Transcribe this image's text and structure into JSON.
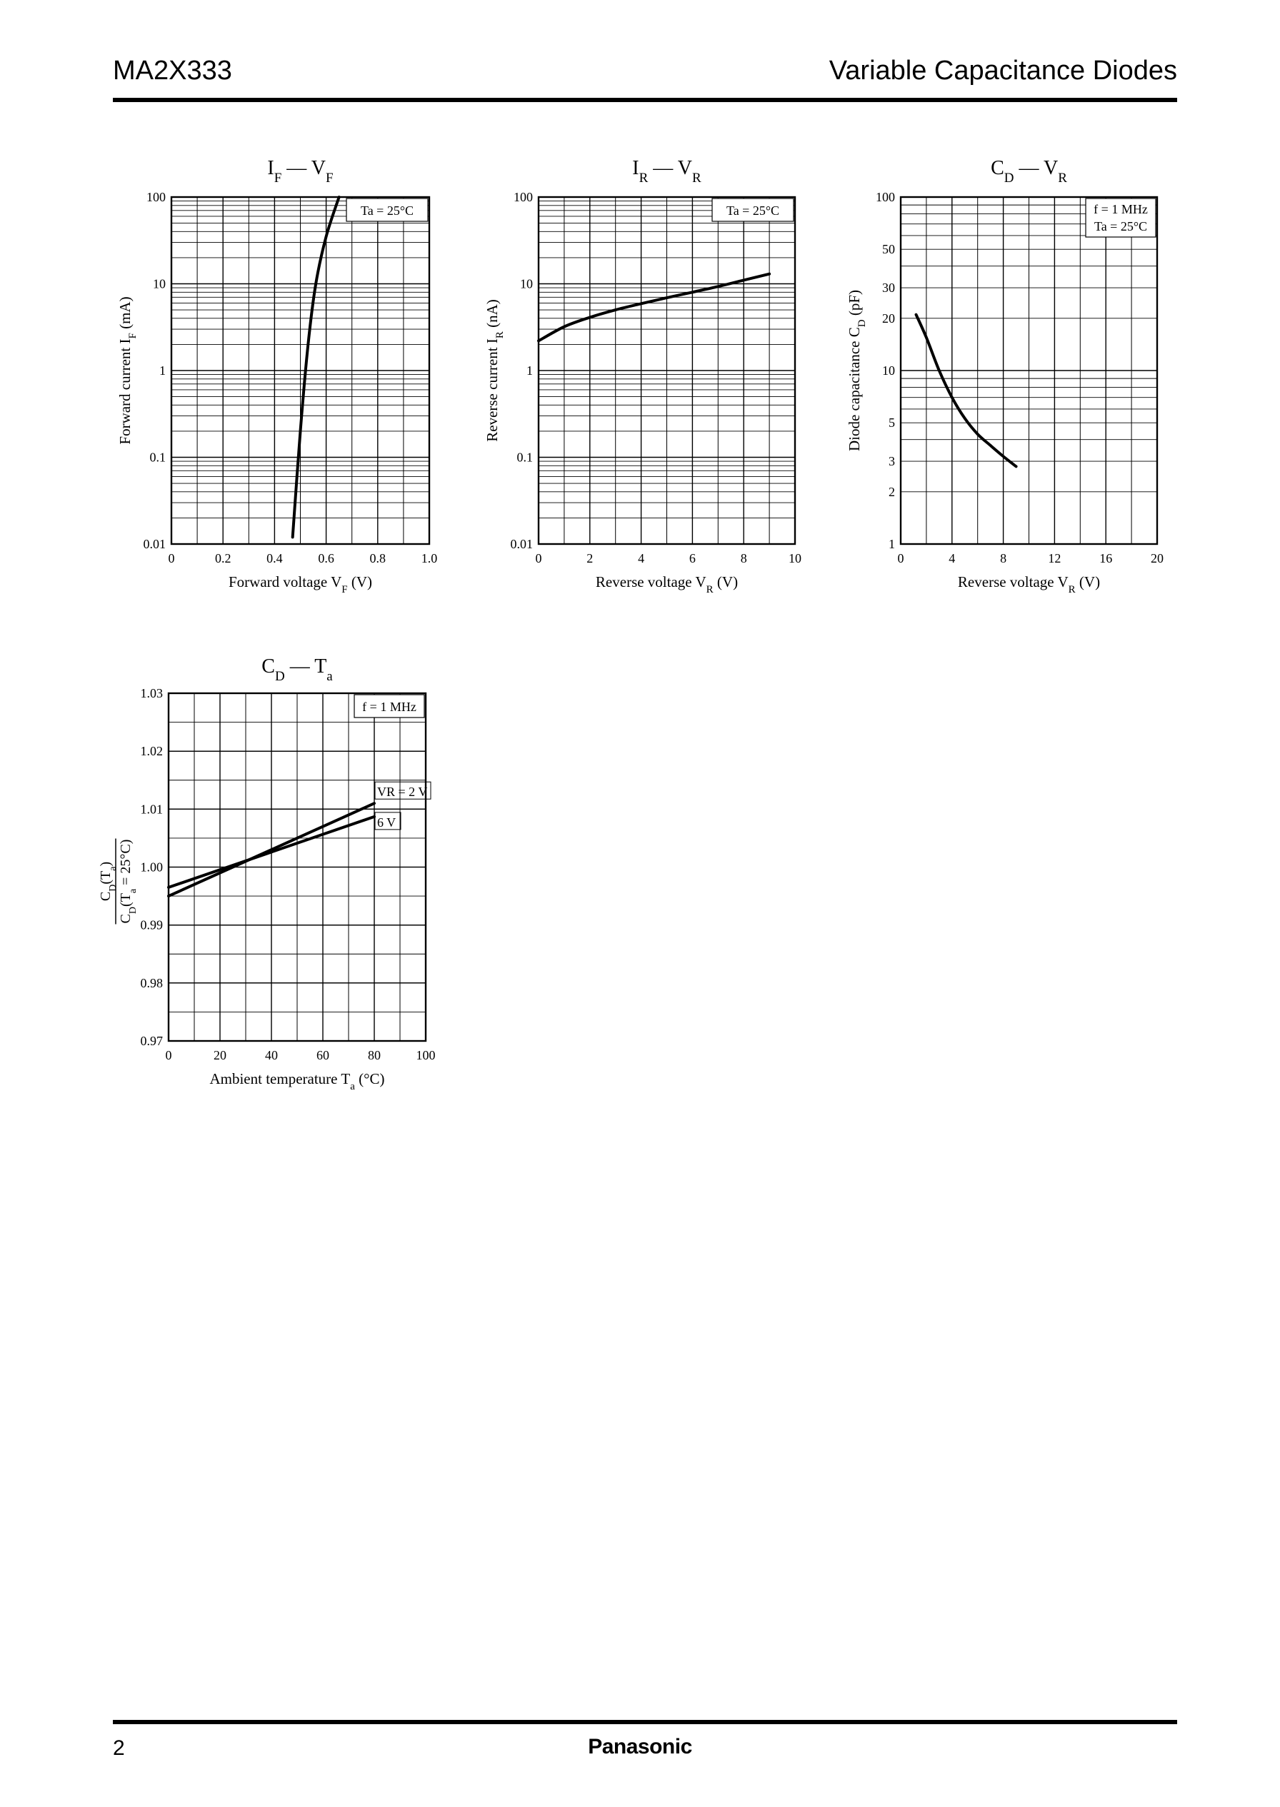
{
  "header": {
    "part_number": "MA2X333",
    "category": "Variable Capacitance Diodes"
  },
  "footer": {
    "page_number": "2",
    "brand": "Panasonic"
  },
  "chart_data": [
    {
      "id": "if_vf",
      "type": "line",
      "title": "IF — VF",
      "title_parts": {
        "a": "I",
        "a_sub": "F",
        "sep": " — ",
        "b": "V",
        "b_sub": "F"
      },
      "xlabel": "Forward voltage  VF  (V)",
      "xlabel_parts": {
        "text": "Forward voltage  V",
        "sub": "F",
        "unit": "  (V)"
      },
      "ylabel": "Forward current  IF  (mA)",
      "ylabel_parts": {
        "text": "Forward current  I",
        "sub": "F",
        "unit": "  (mA)"
      },
      "xscale": "linear",
      "yscale": "log",
      "xlim": [
        0,
        1.0
      ],
      "ylim": [
        0.01,
        100
      ],
      "x_ticks": [
        "0",
        "0.2",
        "0.4",
        "0.6",
        "0.8",
        "1.0"
      ],
      "y_ticks": [
        "0.01",
        "0.1",
        "1",
        "10",
        "100"
      ],
      "grid": true,
      "annotations": [
        "Ta = 25°C"
      ],
      "series": [
        {
          "x": [
            0.47,
            0.5,
            0.53,
            0.56,
            0.6,
            0.65
          ],
          "y": [
            0.012,
            0.2,
            2.0,
            10,
            35,
            100
          ]
        }
      ]
    },
    {
      "id": "ir_vr",
      "type": "line",
      "title": "IR — VR",
      "title_parts": {
        "a": "I",
        "a_sub": "R",
        "sep": " — ",
        "b": "V",
        "b_sub": "R"
      },
      "xlabel": "Reverse voltage  VR  (V)",
      "xlabel_parts": {
        "text": "Reverse voltage  V",
        "sub": "R",
        "unit": "  (V)"
      },
      "ylabel": "Reverse current  IR  (nA)",
      "ylabel_parts": {
        "text": "Reverse current  I",
        "sub": "R",
        "unit": "  (nA)"
      },
      "xscale": "linear",
      "yscale": "log",
      "xlim": [
        0,
        10
      ],
      "ylim": [
        0.01,
        100
      ],
      "x_ticks": [
        "0",
        "2",
        "4",
        "6",
        "8",
        "10"
      ],
      "y_ticks": [
        "0.01",
        "0.1",
        "1",
        "10",
        "100"
      ],
      "grid": true,
      "annotations": [
        "Ta = 25°C"
      ],
      "series": [
        {
          "x": [
            0,
            1,
            2,
            3,
            4,
            5,
            6,
            7,
            8,
            9
          ],
          "y": [
            2.2,
            3.2,
            4.1,
            5.0,
            5.9,
            6.9,
            8.0,
            9.3,
            11.0,
            13.0
          ]
        }
      ]
    },
    {
      "id": "cd_vr",
      "type": "line",
      "title": "CD — VR",
      "title_parts": {
        "a": "C",
        "a_sub": "D",
        "sep": " — ",
        "b": "V",
        "b_sub": "R"
      },
      "xlabel": "Reverse voltage  VR  (V)",
      "xlabel_parts": {
        "text": "Reverse voltage  V",
        "sub": "R",
        "unit": "  (V)"
      },
      "ylabel": "Diode capacitance  CD  (pF)",
      "ylabel_parts": {
        "text": "Diode capacitance  C",
        "sub": "D",
        "unit": "  (pF)"
      },
      "xscale": "linear",
      "yscale": "log",
      "xlim": [
        0,
        20
      ],
      "ylim": [
        1,
        100
      ],
      "x_ticks": [
        "0",
        "4",
        "8",
        "12",
        "16",
        "20"
      ],
      "y_ticks": [
        "1",
        "2",
        "3",
        "5",
        "10",
        "20",
        "30",
        "50",
        "100"
      ],
      "grid": true,
      "annotations": [
        "f = 1 MHz",
        "Ta = 25°C"
      ],
      "series": [
        {
          "x": [
            1.2,
            2,
            3,
            4,
            5,
            6,
            7,
            8,
            9
          ],
          "y": [
            21,
            15.5,
            10,
            7.0,
            5.3,
            4.3,
            3.7,
            3.2,
            2.8
          ]
        }
      ]
    },
    {
      "id": "cd_ta",
      "type": "line",
      "title": "CD — Ta",
      "title_parts": {
        "a": "C",
        "a_sub": "D",
        "sep": " — ",
        "b": "T",
        "b_sub": "a"
      },
      "xlabel": "Ambient temperature  Ta  (°C)",
      "xlabel_parts": {
        "text": "Ambient temperature  T",
        "sub": "a",
        "unit": "  (°C)"
      },
      "ylabel": "CD(Ta) / CD(Ta = 25°C)",
      "ylabel_parts": {
        "num": "C",
        "num_sub": "D",
        "num_rest": "(T",
        "num_sub2": "a",
        "num_end": ")",
        "den": "C",
        "den_sub": "D",
        "den_rest": "(T",
        "den_sub2": "a",
        "den_end": " = 25°C)"
      },
      "xscale": "linear",
      "yscale": "linear",
      "xlim": [
        0,
        100
      ],
      "ylim": [
        0.97,
        1.03
      ],
      "x_ticks": [
        "0",
        "20",
        "40",
        "60",
        "80",
        "100"
      ],
      "y_ticks": [
        "0.97",
        "0.98",
        "0.99",
        "1.00",
        "1.01",
        "1.02",
        "1.03"
      ],
      "grid": true,
      "annotations": [
        "f = 1 MHz"
      ],
      "series": [
        {
          "name": "VR = 2 V",
          "x": [
            0,
            80
          ],
          "y": [
            0.995,
            1.011
          ]
        },
        {
          "name": "6 V",
          "x": [
            0,
            80
          ],
          "y": [
            0.9965,
            1.0087
          ]
        }
      ]
    }
  ]
}
